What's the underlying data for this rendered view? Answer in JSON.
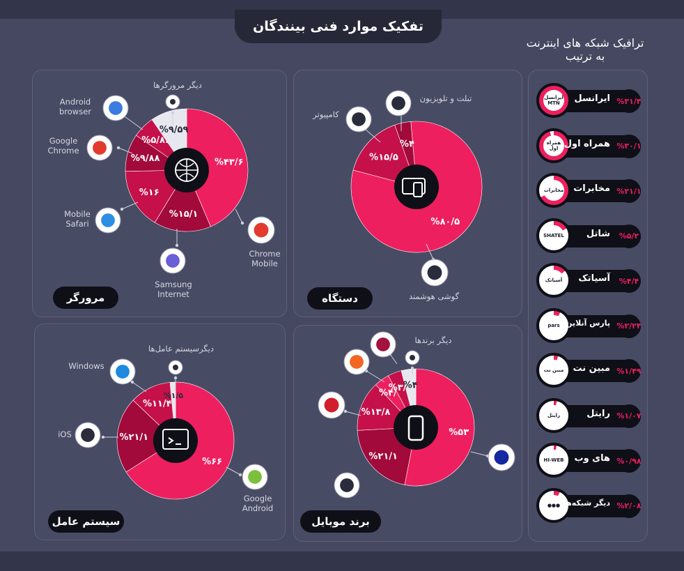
{
  "title": "تفکیک موارد فنی بینندگان",
  "side_title_line1": "ترافیک شبکه های اینترنت",
  "side_title_line2": "به ترتیب",
  "colors": {
    "main": "#ee1f5f",
    "dark": "#c5104a",
    "darker": "#a10a3b",
    "light": "#e7e7ef",
    "bg": "#454860",
    "center": "#0f0f17"
  },
  "panels": {
    "browser": {
      "label": "مرورگر"
    },
    "device": {
      "label": "دستگاه"
    },
    "os": {
      "label": "سیستم عامل"
    },
    "brand": {
      "label": "برند موبایل"
    }
  },
  "callouts": {
    "browser_other": "دیگر مرورگرها",
    "android_browser": "Android browser",
    "google_chrome": "Google Chrome",
    "mobile_safari": "Mobile Safari",
    "samsung_internet": "Samsung Internet",
    "chrome_mobile": "Chrome Mobile",
    "tablet_tv": "تبلت و تلویزیون",
    "computer": "کامپیوتر",
    "smartphone": "گوشی هوشمند",
    "os_other": "دیگرسیستم عامل‌ها",
    "windows": "Windows",
    "ios": "iOS",
    "google_android": "Google Android",
    "brand_other": "دیگر برندها",
    "lg": "LG",
    "huawei": "HUAWEI",
    "samsung": "SAMSUNG"
  },
  "chart_data": [
    {
      "type": "pie",
      "title": "مرورگر",
      "slices": [
        {
          "name": "Chrome Mobile",
          "value": 43.6,
          "label": "%۴۳/۶",
          "color": "main"
        },
        {
          "name": "Samsung Internet",
          "value": 15.1,
          "label": "%۱۵/۱",
          "color": "darker"
        },
        {
          "name": "Mobile Safari",
          "value": 16,
          "label": "%۱۶",
          "color": "dark"
        },
        {
          "name": "Google Chrome",
          "value": 9.88,
          "label": "%۹/۸۸",
          "color": "darker"
        },
        {
          "name": "Android browser",
          "value": 5.83,
          "label": "%۵/۸۳",
          "color": "dark"
        },
        {
          "name": "دیگر مرورگرها",
          "value": 9.59,
          "label": "%۹/۵۹",
          "color": "light"
        }
      ]
    },
    {
      "type": "pie",
      "title": "دستگاه",
      "slices": [
        {
          "name": "گوشی هوشمند",
          "value": 80.5,
          "label": "%۸۰/۵",
          "color": "main"
        },
        {
          "name": "کامپیوتر",
          "value": 15.5,
          "label": "%۱۵/۵",
          "color": "dark"
        },
        {
          "name": "تبلت و تلویزیون",
          "value": 4,
          "label": "%۴",
          "color": "darker"
        }
      ]
    },
    {
      "type": "pie",
      "title": "سیستم عامل",
      "slices": [
        {
          "name": "Google Android",
          "value": 66,
          "label": "%۶۶",
          "color": "main"
        },
        {
          "name": "iOS",
          "value": 21.1,
          "label": "%۲۱/۱",
          "color": "darker"
        },
        {
          "name": "Windows",
          "value": 11.4,
          "label": "%۱۱/۴",
          "color": "dark"
        },
        {
          "name": "دیگرسیستم عامل‌ها",
          "value": 1.5,
          "label": "%۱/۵",
          "color": "light"
        }
      ]
    },
    {
      "type": "pie",
      "title": "برند موبایل",
      "slices": [
        {
          "name": "SAMSUNG",
          "value": 53,
          "label": "%۵۳",
          "color": "main"
        },
        {
          "name": "Apple",
          "value": 21.1,
          "label": "%۲۱/۱",
          "color": "darker"
        },
        {
          "name": "HUAWEI",
          "value": 13.8,
          "label": "%۱۳/۸",
          "color": "dark"
        },
        {
          "name": "Xiaomi",
          "value": 4.2,
          "label": "%۴/۲",
          "color": "main"
        },
        {
          "name": "LG",
          "value": 3.8,
          "label": "%۳/۸",
          "color": "dark"
        },
        {
          "name": "دیگر برندها",
          "value": 4,
          "label": "%۴",
          "color": "light"
        }
      ]
    },
    {
      "type": "bar",
      "title": "ترافیک شبکه های اینترنت",
      "categories": [
        "ایرانسل",
        "همراه اول",
        "مخابرات",
        "شاتل",
        "آسیاتک",
        "پارس آنلاین",
        "مبین نت",
        "رایتل",
        "های وب",
        "دیگر شبکه‌ها"
      ],
      "values": [
        31.4,
        30.1,
        21.1,
        5.2,
        4.4,
        2.24,
        1.49,
        1.07,
        0.98,
        2.08
      ],
      "labels": [
        "%۳۱/۴",
        "%۳۰/۱",
        "%۲۱/۱",
        "%۵/۲",
        "%۴/۴",
        "%۲/۲۴",
        "%۱/۴۹",
        "%۱/۰۷",
        "%۰/۹۸",
        "%۲/۰۸"
      ]
    }
  ],
  "isp_logos": [
    "ایرانسل MTN",
    "همراه اول",
    "مخابرات",
    "SHATEL",
    "آسیاتک",
    "pars",
    "مبین نت",
    "رایتل",
    "HI-WEB",
    "●●●"
  ]
}
